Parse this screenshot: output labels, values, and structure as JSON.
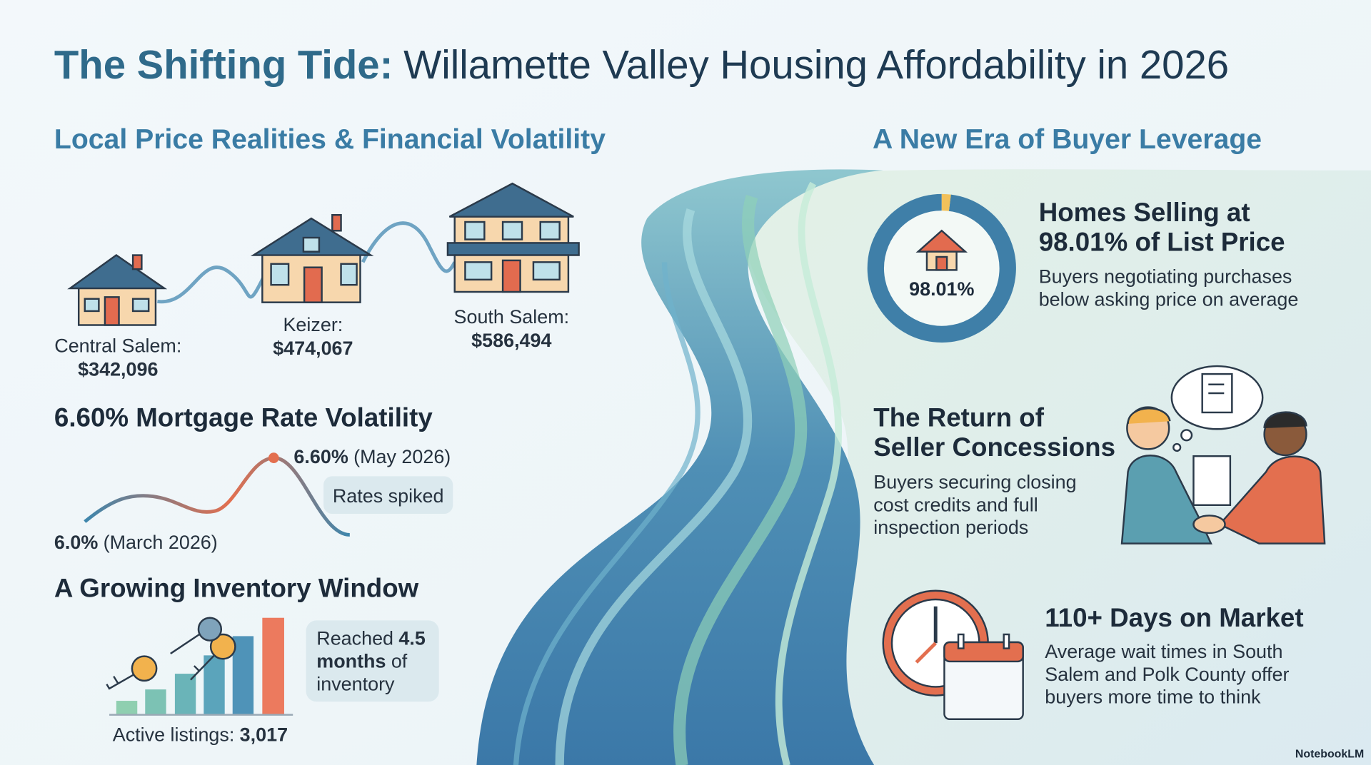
{
  "title": {
    "lead": "The Shifting Tide:",
    "rest": "Willamette Valley Housing Affordability in 2026"
  },
  "left": {
    "heading": "Local Price Realities & Financial Volatility",
    "prices": [
      {
        "area": "Central Salem:",
        "price": "$342,096"
      },
      {
        "area": "Keizer:",
        "price": "$474,067"
      },
      {
        "area": "South Salem:",
        "price": "$586,494"
      }
    ],
    "mortgage": {
      "heading": "6.60% Mortgage Rate Volatility",
      "high": {
        "rate": "6.60%",
        "date": "(May 2026)"
      },
      "callout": "Rates spiked",
      "low": {
        "rate": "6.0%",
        "date": "(March 2026)"
      }
    },
    "inventory": {
      "heading": "A Growing Inventory Window",
      "callout": {
        "lead": "Reached",
        "amount": "4.5",
        "unit": "months",
        "tail": "of",
        "last": "inventory"
      },
      "listings": {
        "label": "Active listings:",
        "value": "3,017"
      }
    }
  },
  "right": {
    "heading": "A New Era of Buyer Leverage",
    "list_price": {
      "share": {
        "value": 98.01,
        "label": "98.01%"
      },
      "title": [
        "Homes Selling at",
        "98.01% of List Price"
      ],
      "text": [
        "Buyers negotiating purchases",
        "below asking price on average"
      ]
    },
    "concessions": {
      "title": [
        "The Return of",
        "Seller Concessions"
      ],
      "text": [
        "Buyers securing closing",
        "cost credits and full",
        "inspection periods"
      ]
    },
    "days": {
      "title": "110+ Days on Market",
      "text": [
        "Average wait times in South",
        "Salem and Polk County offer",
        "buyers more time to think"
      ]
    }
  },
  "footer": "NotebookLM"
}
